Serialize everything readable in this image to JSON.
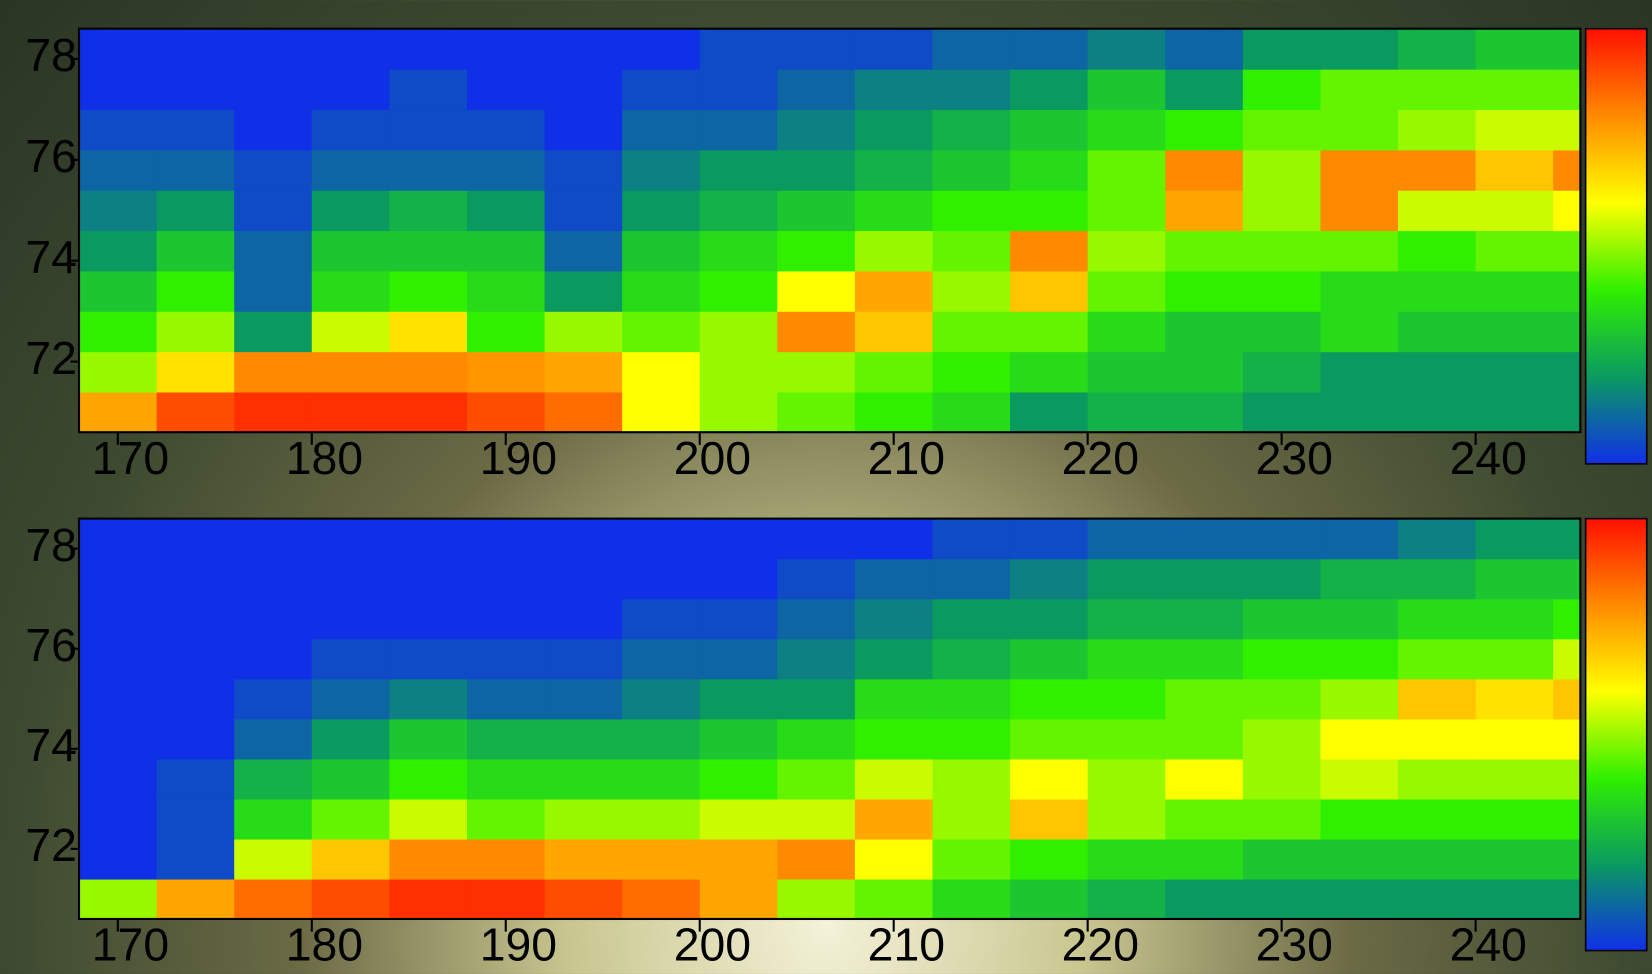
{
  "chart_data": [
    {
      "type": "heatmap",
      "x_bins": [
        168,
        172,
        176,
        180,
        184,
        188,
        192,
        196,
        200,
        204,
        208,
        212,
        216,
        220,
        224,
        228,
        232,
        236,
        240,
        244,
        245.4
      ],
      "y_bins": [
        70.6,
        71.4,
        72.2,
        73.0,
        73.8,
        74.6,
        75.4,
        76.2,
        77.0,
        77.8,
        78.6
      ],
      "z": [
        [
          0.75,
          0.9,
          0.95,
          0.95,
          0.95,
          0.9,
          0.85,
          0.6,
          0.5,
          0.45,
          0.4,
          0.35,
          0.2,
          0.25,
          0.25,
          0.2,
          0.2,
          0.2,
          0.2,
          0.2
        ],
        [
          0.5,
          0.65,
          0.8,
          0.8,
          0.8,
          0.78,
          0.75,
          0.6,
          0.5,
          0.5,
          0.45,
          0.4,
          0.35,
          0.3,
          0.3,
          0.25,
          0.2,
          0.2,
          0.2,
          0.2
        ],
        [
          0.4,
          0.5,
          0.2,
          0.55,
          0.65,
          0.4,
          0.5,
          0.45,
          0.5,
          0.8,
          0.7,
          0.45,
          0.45,
          0.35,
          0.3,
          0.3,
          0.35,
          0.3,
          0.3,
          0.3
        ],
        [
          0.3,
          0.4,
          0.1,
          0.35,
          0.4,
          0.35,
          0.2,
          0.35,
          0.4,
          0.6,
          0.75,
          0.5,
          0.7,
          0.45,
          0.4,
          0.4,
          0.35,
          0.35,
          0.35,
          0.35
        ],
        [
          0.2,
          0.3,
          0.1,
          0.3,
          0.3,
          0.3,
          0.1,
          0.3,
          0.35,
          0.4,
          0.5,
          0.45,
          0.8,
          0.5,
          0.45,
          0.45,
          0.45,
          0.4,
          0.45,
          0.45
        ],
        [
          0.15,
          0.2,
          0.05,
          0.2,
          0.25,
          0.2,
          0.05,
          0.2,
          0.25,
          0.3,
          0.35,
          0.4,
          0.4,
          0.45,
          0.75,
          0.5,
          0.8,
          0.55,
          0.55,
          0.6
        ],
        [
          0.1,
          0.1,
          0.05,
          0.1,
          0.1,
          0.1,
          0.05,
          0.15,
          0.2,
          0.2,
          0.25,
          0.3,
          0.35,
          0.45,
          0.8,
          0.5,
          0.8,
          0.8,
          0.7,
          0.8
        ],
        [
          0.05,
          0.05,
          0,
          0.05,
          0.05,
          0.05,
          0,
          0.1,
          0.1,
          0.15,
          0.2,
          0.25,
          0.3,
          0.35,
          0.4,
          0.45,
          0.45,
          0.5,
          0.55,
          0.55
        ],
        [
          0,
          0,
          0,
          0,
          0.05,
          0,
          0,
          0.05,
          0.05,
          0.1,
          0.15,
          0.15,
          0.2,
          0.3,
          0.2,
          0.4,
          0.45,
          0.45,
          0.45,
          0.45
        ],
        [
          0,
          0,
          0,
          0,
          0,
          0,
          0,
          0,
          0.05,
          0.05,
          0.05,
          0.1,
          0.1,
          0.15,
          0.1,
          0.2,
          0.2,
          0.25,
          0.3,
          0.3
        ]
      ],
      "xlim": [
        168,
        245.4
      ],
      "ylim": [
        70.6,
        78.6
      ],
      "xticks": [
        170,
        180,
        190,
        200,
        210,
        220,
        230,
        240
      ],
      "yticks": [
        72,
        74,
        76,
        78
      ],
      "zlim": [
        0,
        1
      ],
      "colormap": [
        "#1030e8",
        "#0a9a60",
        "#30f000",
        "#ffff00",
        "#ff8a00",
        "#ff1000"
      ]
    },
    {
      "type": "heatmap",
      "x_bins": [
        168,
        172,
        176,
        180,
        184,
        188,
        192,
        196,
        200,
        204,
        208,
        212,
        216,
        220,
        224,
        228,
        232,
        236,
        240,
        244,
        245.4
      ],
      "y_bins": [
        70.6,
        71.4,
        72.2,
        73.0,
        73.8,
        74.6,
        75.4,
        76.2,
        77.0,
        77.8,
        78.6
      ],
      "z": [
        [
          0.5,
          0.75,
          0.85,
          0.9,
          0.95,
          0.95,
          0.9,
          0.85,
          0.75,
          0.5,
          0.45,
          0.35,
          0.3,
          0.25,
          0.2,
          0.2,
          0.2,
          0.2,
          0.2,
          0.2
        ],
        [
          0,
          0.05,
          0.55,
          0.7,
          0.8,
          0.8,
          0.75,
          0.75,
          0.75,
          0.8,
          0.6,
          0.45,
          0.4,
          0.35,
          0.35,
          0.3,
          0.3,
          0.3,
          0.3,
          0.3
        ],
        [
          0,
          0.05,
          0.35,
          0.45,
          0.55,
          0.45,
          0.5,
          0.5,
          0.55,
          0.55,
          0.75,
          0.5,
          0.7,
          0.5,
          0.45,
          0.45,
          0.4,
          0.4,
          0.4,
          0.4
        ],
        [
          0,
          0.05,
          0.25,
          0.3,
          0.4,
          0.35,
          0.35,
          0.35,
          0.4,
          0.45,
          0.55,
          0.5,
          0.6,
          0.5,
          0.6,
          0.5,
          0.55,
          0.5,
          0.5,
          0.5
        ],
        [
          0,
          0,
          0.1,
          0.2,
          0.3,
          0.25,
          0.25,
          0.25,
          0.3,
          0.35,
          0.4,
          0.4,
          0.45,
          0.45,
          0.45,
          0.5,
          0.6,
          0.6,
          0.6,
          0.6
        ],
        [
          0,
          0,
          0.05,
          0.1,
          0.15,
          0.1,
          0.1,
          0.15,
          0.2,
          0.2,
          0.35,
          0.35,
          0.4,
          0.4,
          0.45,
          0.45,
          0.5,
          0.7,
          0.65,
          0.7
        ],
        [
          0,
          0,
          0,
          0.05,
          0.05,
          0.05,
          0.05,
          0.1,
          0.1,
          0.15,
          0.2,
          0.25,
          0.3,
          0.35,
          0.35,
          0.4,
          0.4,
          0.45,
          0.45,
          0.55
        ],
        [
          0,
          0,
          0,
          0,
          0,
          0,
          0,
          0.05,
          0.05,
          0.1,
          0.15,
          0.2,
          0.2,
          0.25,
          0.25,
          0.3,
          0.3,
          0.35,
          0.35,
          0.4
        ],
        [
          0,
          0,
          0,
          0,
          0,
          0,
          0,
          0,
          0,
          0.05,
          0.1,
          0.1,
          0.15,
          0.2,
          0.2,
          0.2,
          0.25,
          0.25,
          0.3,
          0.3
        ],
        [
          0,
          0,
          0,
          0,
          0,
          0,
          0,
          0,
          0,
          0,
          0,
          0.05,
          0.05,
          0.1,
          0.1,
          0.1,
          0.1,
          0.15,
          0.2,
          0.2
        ]
      ],
      "xlim": [
        168,
        245.4
      ],
      "ylim": [
        70.6,
        78.6
      ],
      "xticks": [
        170,
        180,
        190,
        200,
        210,
        220,
        230,
        240
      ],
      "yticks": [
        72,
        74,
        76,
        78
      ],
      "zlim": [
        0,
        1
      ],
      "colormap": [
        "#1030e8",
        "#0a9a60",
        "#30f000",
        "#ffff00",
        "#ff8a00",
        "#ff1000"
      ]
    }
  ]
}
